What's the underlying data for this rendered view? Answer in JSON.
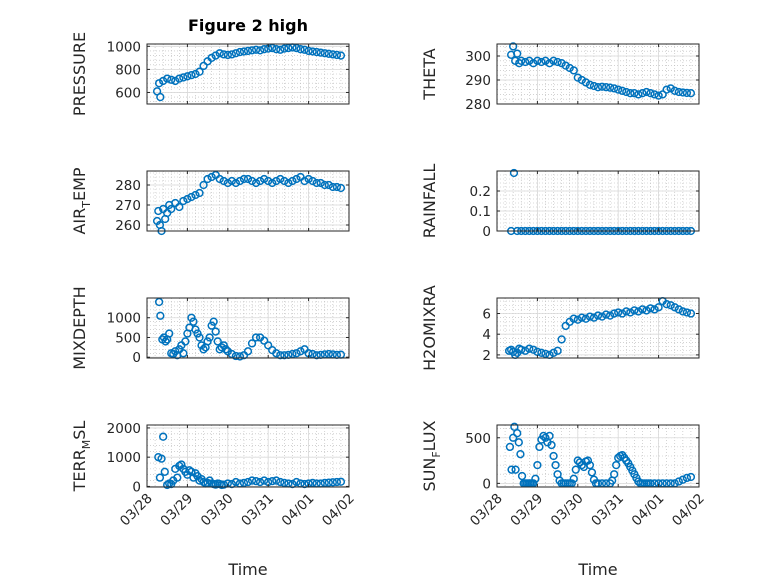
{
  "figure_title": "Figure 2 high",
  "x_label": "Time",
  "x_ticks": [
    "03/28",
    "03/29",
    "03/30",
    "03/31",
    "04/01",
    "04/02"
  ],
  "colors": {
    "marker": "#0072BD",
    "axes": "#262626",
    "grid": "#b8b8b8"
  },
  "chart_data": [
    {
      "type": "scatter",
      "ylabel": "PRESSURE",
      "ylim": [
        500,
        1020
      ],
      "yticks": [
        600,
        800,
        1000
      ],
      "xlim": [
        0,
        5
      ],
      "grid": true,
      "xticklabels": false,
      "x": [
        0.25,
        0.3,
        0.33,
        0.4,
        0.5,
        0.6,
        0.7,
        0.8,
        0.9,
        1.0,
        1.1,
        1.2,
        1.3,
        1.4,
        1.5,
        1.6,
        1.7,
        1.8,
        1.9,
        2.0,
        2.1,
        2.2,
        2.3,
        2.4,
        2.5,
        2.6,
        2.7,
        2.8,
        2.9,
        3.0,
        3.1,
        3.2,
        3.3,
        3.4,
        3.5,
        3.6,
        3.7,
        3.8,
        3.9,
        4.0,
        4.1,
        4.2,
        4.3,
        4.4,
        4.5,
        4.6,
        4.7,
        4.8
      ],
      "y": [
        610,
        680,
        560,
        700,
        720,
        710,
        700,
        720,
        730,
        740,
        750,
        760,
        780,
        830,
        870,
        900,
        920,
        940,
        930,
        925,
        930,
        940,
        950,
        955,
        960,
        965,
        970,
        965,
        975,
        980,
        985,
        975,
        970,
        980,
        985,
        990,
        985,
        975,
        970,
        960,
        955,
        950,
        945,
        940,
        935,
        930,
        925,
        920
      ]
    },
    {
      "type": "scatter",
      "ylabel": "THETA",
      "ylim": [
        280,
        305
      ],
      "yticks": [
        280,
        290,
        300
      ],
      "xlim": [
        0,
        5
      ],
      "grid": true,
      "xticklabels": false,
      "x": [
        0.35,
        0.4,
        0.45,
        0.5,
        0.55,
        0.6,
        0.7,
        0.8,
        0.9,
        1.0,
        1.1,
        1.2,
        1.3,
        1.4,
        1.5,
        1.6,
        1.7,
        1.8,
        1.9,
        2.0,
        2.1,
        2.2,
        2.3,
        2.4,
        2.5,
        2.6,
        2.7,
        2.8,
        2.9,
        3.0,
        3.1,
        3.2,
        3.3,
        3.4,
        3.5,
        3.6,
        3.7,
        3.8,
        3.9,
        4.0,
        4.1,
        4.2,
        4.3,
        4.4,
        4.5,
        4.6,
        4.7,
        4.8
      ],
      "y": [
        300.5,
        304,
        298,
        301,
        297,
        298,
        297.5,
        298,
        297,
        298,
        297.5,
        298,
        297,
        298,
        297.5,
        297,
        296,
        295,
        294,
        291,
        290,
        289,
        288,
        287.5,
        287,
        287.2,
        287,
        286.8,
        286.5,
        286,
        285.5,
        285,
        284.5,
        284.5,
        284,
        284.5,
        285,
        284.5,
        284,
        283.5,
        284,
        286,
        286.5,
        285.5,
        285,
        284.8,
        284.6,
        284.5
      ]
    },
    {
      "type": "scatter",
      "ylabel": "AIR_TEMP",
      "ylim": [
        257,
        287
      ],
      "yticks": [
        260,
        270,
        280
      ],
      "xlim": [
        0,
        5
      ],
      "grid": true,
      "xticklabels": false,
      "x": [
        0.25,
        0.28,
        0.32,
        0.36,
        0.4,
        0.45,
        0.5,
        0.55,
        0.6,
        0.7,
        0.8,
        0.9,
        1.0,
        1.1,
        1.2,
        1.3,
        1.4,
        1.5,
        1.6,
        1.7,
        1.8,
        1.9,
        2.0,
        2.1,
        2.2,
        2.3,
        2.4,
        2.5,
        2.6,
        2.7,
        2.8,
        2.9,
        3.0,
        3.1,
        3.2,
        3.3,
        3.4,
        3.5,
        3.6,
        3.7,
        3.8,
        3.9,
        4.0,
        4.1,
        4.2,
        4.3,
        4.4,
        4.5,
        4.6,
        4.7,
        4.8
      ],
      "y": [
        262,
        267,
        260,
        257,
        268,
        263,
        266,
        270,
        268,
        271,
        269,
        272,
        273,
        274,
        275,
        276,
        280,
        283,
        284,
        285,
        283,
        282,
        281,
        282,
        281,
        282,
        283,
        283,
        282,
        281,
        282,
        283,
        282,
        281,
        282,
        283,
        282,
        281,
        282,
        283,
        284,
        282,
        283,
        282,
        281,
        281,
        280,
        280,
        279,
        279,
        278.5
      ]
    },
    {
      "type": "scatter",
      "ylabel": "RAINFALL",
      "ylim": [
        0,
        0.3
      ],
      "yticks": [
        0,
        0.1,
        0.2
      ],
      "xlim": [
        0,
        5
      ],
      "grid": true,
      "xticklabels": false,
      "x": [
        0.35,
        0.42,
        0.5,
        0.6,
        0.7,
        0.8,
        0.9,
        1.0,
        1.1,
        1.2,
        1.3,
        1.4,
        1.5,
        1.6,
        1.7,
        1.8,
        1.9,
        2.0,
        2.1,
        2.2,
        2.3,
        2.4,
        2.5,
        2.6,
        2.7,
        2.8,
        2.9,
        3.0,
        3.1,
        3.2,
        3.3,
        3.4,
        3.5,
        3.6,
        3.7,
        3.8,
        3.9,
        4.0,
        4.1,
        4.2,
        4.3,
        4.4,
        4.5,
        4.6,
        4.7,
        4.8
      ],
      "y": [
        0,
        0.29,
        0,
        0,
        0,
        0,
        0,
        0,
        0,
        0,
        0,
        0,
        0,
        0,
        0,
        0,
        0,
        0,
        0,
        0,
        0,
        0,
        0,
        0,
        0,
        0,
        0,
        0,
        0,
        0,
        0,
        0,
        0,
        0,
        0,
        0,
        0,
        0,
        0,
        0,
        0,
        0,
        0,
        0,
        0,
        0
      ]
    },
    {
      "type": "scatter",
      "ylabel": "MIXDEPTH",
      "ylim": [
        -20,
        1500
      ],
      "yticks": [
        0,
        500,
        1000
      ],
      "xlim": [
        0,
        5
      ],
      "grid": true,
      "xticklabels": false,
      "x": [
        0.3,
        0.33,
        0.38,
        0.42,
        0.46,
        0.5,
        0.55,
        0.6,
        0.65,
        0.7,
        0.75,
        0.8,
        0.85,
        0.9,
        0.95,
        1.0,
        1.05,
        1.1,
        1.15,
        1.2,
        1.25,
        1.3,
        1.35,
        1.4,
        1.45,
        1.5,
        1.55,
        1.6,
        1.65,
        1.7,
        1.75,
        1.8,
        1.85,
        1.9,
        1.95,
        2.0,
        2.1,
        2.2,
        2.3,
        2.4,
        2.5,
        2.6,
        2.7,
        2.8,
        2.9,
        3.0,
        3.1,
        3.2,
        3.3,
        3.4,
        3.5,
        3.6,
        3.7,
        3.8,
        3.9,
        4.0,
        4.1,
        4.2,
        4.3,
        4.4,
        4.5,
        4.6,
        4.7,
        4.8
      ],
      "y": [
        1400,
        1050,
        450,
        500,
        400,
        450,
        600,
        100,
        80,
        150,
        50,
        200,
        300,
        100,
        400,
        600,
        750,
        1000,
        900,
        700,
        600,
        500,
        300,
        200,
        250,
        400,
        500,
        800,
        900,
        650,
        400,
        200,
        250,
        300,
        200,
        150,
        80,
        30,
        20,
        50,
        150,
        350,
        500,
        500,
        420,
        300,
        180,
        100,
        50,
        50,
        60,
        80,
        100,
        150,
        200,
        100,
        80,
        50,
        60,
        70,
        80,
        70,
        60,
        65
      ]
    },
    {
      "type": "scatter",
      "ylabel": "H2OMIXRA",
      "ylim": [
        1.7,
        7.5
      ],
      "yticks": [
        2,
        4,
        6
      ],
      "xlim": [
        0,
        5
      ],
      "grid": true,
      "xticklabels": false,
      "x": [
        0.3,
        0.35,
        0.4,
        0.45,
        0.5,
        0.55,
        0.6,
        0.7,
        0.8,
        0.9,
        1.0,
        1.1,
        1.2,
        1.3,
        1.4,
        1.5,
        1.6,
        1.7,
        1.8,
        1.9,
        2.0,
        2.1,
        2.2,
        2.3,
        2.4,
        2.5,
        2.6,
        2.7,
        2.8,
        2.9,
        3.0,
        3.1,
        3.2,
        3.3,
        3.4,
        3.5,
        3.6,
        3.7,
        3.8,
        3.9,
        4.0,
        4.1,
        4.2,
        4.3,
        4.4,
        4.5,
        4.6,
        4.7,
        4.8
      ],
      "y": [
        2.4,
        2.5,
        2.3,
        2.0,
        2.2,
        2.6,
        2.5,
        2.4,
        2.6,
        2.5,
        2.3,
        2.2,
        2.1,
        2.0,
        2.2,
        2.4,
        3.5,
        4.8,
        5.2,
        5.5,
        5.4,
        5.6,
        5.5,
        5.7,
        5.6,
        5.8,
        5.7,
        5.9,
        5.8,
        6.0,
        6.1,
        6.0,
        6.2,
        6.1,
        6.3,
        6.2,
        6.4,
        6.3,
        6.5,
        6.4,
        6.6,
        7.2,
        6.9,
        6.8,
        6.6,
        6.4,
        6.2,
        6.1,
        6.0
      ]
    },
    {
      "type": "scatter",
      "ylabel": "TERR_MSL",
      "ylim": [
        -20,
        2100
      ],
      "yticks": [
        0,
        1000,
        2000
      ],
      "xlim": [
        0,
        5
      ],
      "grid": true,
      "xticklabels": true,
      "x": [
        0.28,
        0.32,
        0.36,
        0.4,
        0.44,
        0.5,
        0.55,
        0.6,
        0.65,
        0.7,
        0.75,
        0.8,
        0.85,
        0.9,
        0.95,
        1.0,
        1.05,
        1.1,
        1.15,
        1.2,
        1.25,
        1.3,
        1.35,
        1.4,
        1.45,
        1.5,
        1.55,
        1.6,
        1.65,
        1.7,
        1.75,
        1.8,
        1.85,
        1.9,
        2.0,
        2.1,
        2.2,
        2.3,
        2.4,
        2.5,
        2.6,
        2.7,
        2.8,
        2.9,
        3.0,
        3.1,
        3.2,
        3.3,
        3.4,
        3.5,
        3.6,
        3.7,
        3.8,
        3.9,
        4.0,
        4.1,
        4.2,
        4.3,
        4.4,
        4.5,
        4.6,
        4.7,
        4.8
      ],
      "y": [
        1000,
        300,
        950,
        1700,
        500,
        50,
        100,
        80,
        200,
        600,
        300,
        700,
        750,
        600,
        500,
        400,
        550,
        500,
        300,
        450,
        350,
        200,
        250,
        150,
        100,
        120,
        200,
        100,
        80,
        60,
        100,
        80,
        50,
        60,
        100,
        80,
        150,
        100,
        120,
        150,
        200,
        180,
        150,
        200,
        150,
        180,
        200,
        150,
        120,
        100,
        80,
        150,
        100,
        80,
        100,
        120,
        100,
        100,
        120,
        130,
        140,
        150,
        160
      ]
    },
    {
      "type": "scatter",
      "ylabel": "SUN_FLUX",
      "ylim": [
        -40,
        640
      ],
      "yticks": [
        0,
        500
      ],
      "xlim": [
        0,
        5
      ],
      "grid": true,
      "xticklabels": true,
      "x": [
        0.32,
        0.36,
        0.4,
        0.43,
        0.46,
        0.5,
        0.54,
        0.58,
        0.62,
        0.66,
        0.7,
        0.74,
        0.78,
        0.82,
        0.86,
        0.9,
        0.95,
        1.0,
        1.05,
        1.1,
        1.15,
        1.2,
        1.25,
        1.3,
        1.35,
        1.4,
        1.45,
        1.5,
        1.55,
        1.6,
        1.65,
        1.7,
        1.75,
        1.8,
        1.85,
        1.9,
        1.95,
        2.0,
        2.05,
        2.1,
        2.15,
        2.2,
        2.25,
        2.3,
        2.35,
        2.4,
        2.45,
        2.5,
        2.6,
        2.7,
        2.8,
        2.85,
        2.9,
        2.95,
        3.0,
        3.05,
        3.1,
        3.15,
        3.2,
        3.25,
        3.3,
        3.35,
        3.4,
        3.45,
        3.5,
        3.55,
        3.6,
        3.65,
        3.7,
        3.75,
        3.8,
        3.9,
        4.0,
        4.1,
        4.2,
        4.3,
        4.4,
        4.5,
        4.6,
        4.7,
        4.8
      ],
      "y": [
        400,
        150,
        500,
        620,
        150,
        550,
        450,
        320,
        80,
        0,
        0,
        0,
        0,
        0,
        0,
        0,
        50,
        200,
        400,
        480,
        520,
        500,
        450,
        520,
        420,
        300,
        200,
        100,
        30,
        0,
        0,
        0,
        0,
        0,
        0,
        50,
        150,
        250,
        230,
        200,
        180,
        240,
        250,
        200,
        120,
        40,
        0,
        0,
        0,
        0,
        0,
        30,
        100,
        200,
        280,
        300,
        310,
        280,
        250,
        220,
        180,
        140,
        100,
        60,
        20,
        0,
        0,
        0,
        0,
        0,
        0,
        0,
        0,
        0,
        0,
        0,
        0,
        20,
        40,
        60,
        70
      ]
    }
  ]
}
